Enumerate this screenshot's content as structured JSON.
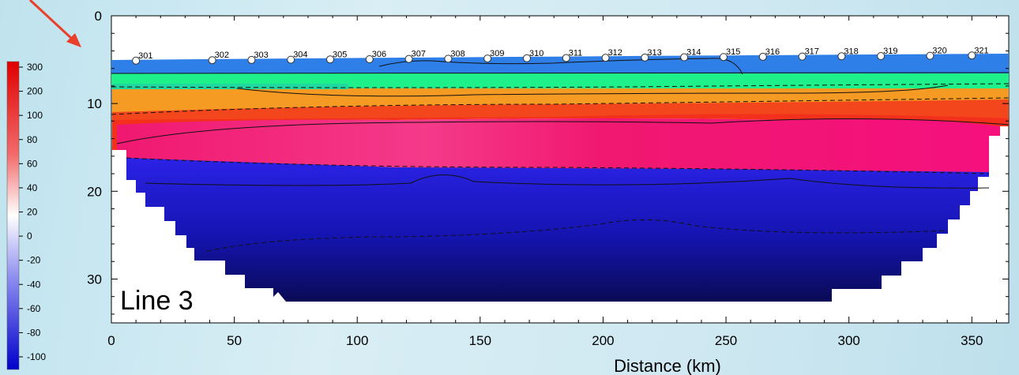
{
  "chart_data": {
    "type": "heatmap",
    "panel_label": "Line 3",
    "xlabel": "Distance (km)",
    "ylabel": "",
    "xlim": [
      0,
      365
    ],
    "ylim": [
      0,
      35
    ],
    "y_inverted": true,
    "x_ticks": [
      0,
      50,
      100,
      150,
      200,
      250,
      300,
      350
    ],
    "y_ticks": [
      0,
      10,
      20,
      30
    ],
    "colorbar": {
      "ticks": [
        "300",
        "200",
        "100",
        "80",
        "60",
        "40",
        "20",
        "0",
        "-20",
        "-40",
        "-60",
        "-80",
        "-100"
      ],
      "top_color": "#e00000",
      "bottom_color": "#0000cc"
    },
    "stations": [
      {
        "label": "301",
        "x": 10
      },
      {
        "label": "302",
        "x": 41
      },
      {
        "label": "303",
        "x": 57
      },
      {
        "label": "304",
        "x": 73
      },
      {
        "label": "305",
        "x": 89
      },
      {
        "label": "306",
        "x": 105
      },
      {
        "label": "307",
        "x": 121
      },
      {
        "label": "308",
        "x": 137
      },
      {
        "label": "309",
        "x": 153
      },
      {
        "label": "310",
        "x": 169
      },
      {
        "label": "311",
        "x": 185
      },
      {
        "label": "312",
        "x": 201
      },
      {
        "label": "313",
        "x": 217
      },
      {
        "label": "314",
        "x": 233
      },
      {
        "label": "315",
        "x": 249
      },
      {
        "label": "316",
        "x": 265
      },
      {
        "label": "317",
        "x": 281
      },
      {
        "label": "318",
        "x": 297
      },
      {
        "label": "319",
        "x": 313
      },
      {
        "label": "320",
        "x": 333
      },
      {
        "label": "321",
        "x": 350
      }
    ],
    "layers": [
      {
        "name": "blue-top",
        "color": "#2f7fe8",
        "top_depth": 4.8,
        "bottom_depth": 6.2
      },
      {
        "name": "green",
        "color": "#1ef08a",
        "top_depth": 6.2,
        "bottom_depth": 7.9
      },
      {
        "name": "orange",
        "color": "#f59a22",
        "top_depth": 7.9,
        "bottom_depth": 10.5
      },
      {
        "name": "red",
        "color": "#f2301c",
        "top_depth": 10.5,
        "bottom_depth": 12.3
      },
      {
        "name": "magenta",
        "color": "#f5207a",
        "top_depth": 12.3,
        "bottom_depth": 16.8
      },
      {
        "name": "blue-lower",
        "color": "#2a1ee8",
        "top_depth": 16.8,
        "bottom_depth": 33
      }
    ]
  }
}
